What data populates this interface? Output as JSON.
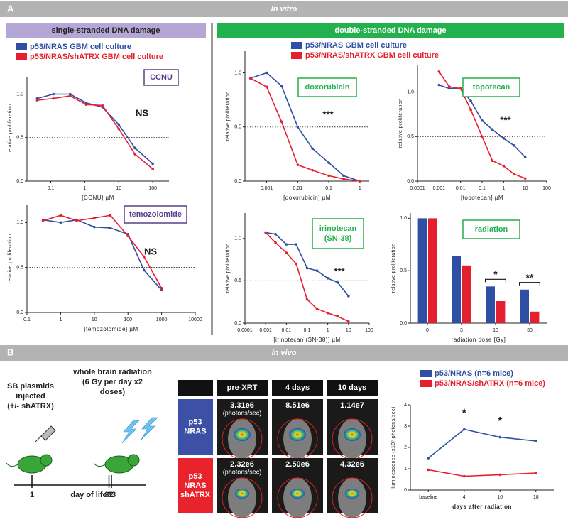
{
  "panel_a": {
    "letter": "A",
    "title": "In vitro",
    "left_header": "single-stranded DNA damage",
    "right_header": "double-stranded DNA damage"
  },
  "panel_b": {
    "letter": "B",
    "title": "In vivo"
  },
  "timeline": {
    "events": [
      {
        "label": [
          "SB plasmids",
          "injected",
          "(+/- shATRX)"
        ],
        "day": 1
      },
      {
        "label": [
          "whole brain radiation",
          "(6 Gy per day x2",
          "doses)"
        ],
        "day": 32
      }
    ],
    "extra_day": 33,
    "axis_label": "day of life"
  },
  "imaging": {
    "columns": [
      "pre-XRT",
      "4 days",
      "10 days"
    ],
    "rows": [
      {
        "label": [
          "p53",
          "NRAS"
        ],
        "color": "#3c50a5",
        "cells": [
          [
            "3.31e6",
            "(photons/sec)"
          ],
          [
            "8.51e6"
          ],
          [
            "1.14e7"
          ]
        ]
      },
      {
        "label": [
          "p53",
          "NRAS",
          "shATRX"
        ],
        "color": "#e8232b",
        "cells": [
          [
            "2.32e6",
            "(photons/sec)"
          ],
          [
            "2.50e6"
          ],
          [
            "4.32e6"
          ]
        ]
      }
    ]
  },
  "chart_data": [
    {
      "type": "line",
      "label": [
        "CCNU"
      ],
      "label_color": "#5b3f8c",
      "annotation": "NS",
      "xscale": "log",
      "xlabel": "[CCNU] µM",
      "ylabel": "relative proliferation",
      "refline": 0.5,
      "x": [
        0.04,
        0.12,
        0.37,
        1.1,
        3.3,
        10,
        30,
        100
      ],
      "xlim": [
        0.02,
        300
      ],
      "xticks": [
        0.1,
        1,
        10,
        100
      ],
      "ylim": [
        0,
        1.2
      ],
      "yticks": [
        {
          "value": 0,
          "label": "0.0"
        },
        {
          "value": 0.5,
          "label": "0.5"
        },
        {
          "value": 1,
          "label": "1.0"
        }
      ],
      "series": [
        {
          "name": "p53/NRAS GBM cell culture",
          "color": "#2e4fa3",
          "values": [
            0.95,
            1.0,
            1.0,
            0.9,
            0.85,
            0.65,
            0.38,
            0.2
          ]
        },
        {
          "name": "p53/NRAS/shATRX GBM cell culture",
          "color": "#e5202e",
          "values": [
            0.93,
            0.95,
            0.98,
            0.88,
            0.87,
            0.6,
            0.31,
            0.14
          ]
        }
      ]
    },
    {
      "type": "line",
      "label": [
        "temozolomide"
      ],
      "label_color": "#5b3f8c",
      "annotation": "NS",
      "xscale": "log",
      "xlabel": "[temozolomide] µM",
      "ylabel": "relative proliferation",
      "refline": 0.5,
      "x": [
        0.3,
        1,
        3,
        10,
        30,
        100,
        300,
        1000
      ],
      "xlim": [
        0.1,
        10000
      ],
      "xticks": [
        0.1,
        1,
        10,
        100,
        1000,
        10000
      ],
      "ylim": [
        0,
        1.2
      ],
      "yticks": [
        {
          "value": 0,
          "label": "0.0"
        },
        {
          "value": 0.5,
          "label": "0.5"
        },
        {
          "value": 1,
          "label": "1.0"
        }
      ],
      "series": [
        {
          "color": "#2e4fa3",
          "values": [
            1.03,
            1.0,
            1.03,
            0.95,
            0.94,
            0.87,
            0.47,
            0.25
          ]
        },
        {
          "color": "#e5202e",
          "values": [
            1.02,
            1.08,
            1.02,
            1.05,
            1.08,
            0.85,
            0.62,
            0.27
          ]
        }
      ]
    },
    {
      "type": "line",
      "label": [
        "doxorubicin"
      ],
      "label_color": "#22b14c",
      "annotation": "***",
      "xscale": "log",
      "xlabel": "[doxorubicin] µM",
      "ylabel": "relative proliferation",
      "refline": 0.5,
      "x": [
        0.0003,
        0.001,
        0.003,
        0.01,
        0.03,
        0.1,
        0.3,
        1
      ],
      "xlim": [
        0.0002,
        2
      ],
      "xticks": [
        0.001,
        0.01,
        0.1,
        1
      ],
      "ylim": [
        0,
        1.2
      ],
      "yticks": [
        {
          "value": 0,
          "label": "0.0"
        },
        {
          "value": 0.5,
          "label": "0.5"
        },
        {
          "value": 1,
          "label": "1.0"
        }
      ],
      "series": [
        {
          "name": "p53/NRAS GBM cell culture",
          "color": "#2e4fa3",
          "values": [
            0.95,
            1.0,
            0.88,
            0.5,
            0.3,
            0.17,
            0.05,
            0.0
          ]
        },
        {
          "name": "p53/NRAS/shATRX GBM cell culture",
          "color": "#e5202e",
          "values": [
            0.95,
            0.87,
            0.55,
            0.15,
            0.1,
            0.05,
            0.02,
            0.0
          ]
        }
      ]
    },
    {
      "type": "line",
      "label": [
        "topotecan"
      ],
      "label_color": "#22b14c",
      "annotation": "***",
      "xscale": "log",
      "xlabel": "[topotecan] µM",
      "ylabel": "relative proliferation",
      "refline": 0.5,
      "x": [
        0.001,
        0.003,
        0.01,
        0.03,
        0.1,
        0.3,
        1,
        3,
        10
      ],
      "xlim": [
        0.0001,
        100
      ],
      "xticks": [
        0.0001,
        0.001,
        0.01,
        0.1,
        1,
        10,
        100
      ],
      "ylim": [
        0,
        1.3
      ],
      "yticks": [
        {
          "value": 0,
          "label": "0.0"
        },
        {
          "value": 0.5,
          "label": "0.5"
        },
        {
          "value": 1,
          "label": "1.0"
        }
      ],
      "series": [
        {
          "color": "#2e4fa3",
          "values": [
            1.08,
            1.04,
            1.04,
            0.9,
            0.68,
            0.58,
            0.48,
            0.4,
            0.27
          ]
        },
        {
          "color": "#e5202e",
          "values": [
            1.23,
            1.06,
            1.04,
            0.8,
            0.5,
            0.23,
            0.17,
            0.08,
            0.03
          ]
        }
      ]
    },
    {
      "type": "line",
      "label": [
        "irinotecan",
        "(SN-38)"
      ],
      "label_color": "#22b14c",
      "annotation": "***",
      "xscale": "log",
      "xlabel": "[irinotecan (SN-38)] µM",
      "ylabel": "relative proliferation",
      "refline": 0.5,
      "x": [
        0.001,
        0.003,
        0.01,
        0.03,
        0.1,
        0.3,
        1,
        3,
        10
      ],
      "xlim": [
        0.0001,
        100
      ],
      "xticks": [
        0.0001,
        0.001,
        0.01,
        0.1,
        1,
        10,
        100
      ],
      "ylim": [
        0,
        1.3
      ],
      "yticks": [
        {
          "value": 0,
          "label": "0.0"
        },
        {
          "value": 0.5,
          "label": "0.5"
        },
        {
          "value": 1,
          "label": "1.0"
        }
      ],
      "series": [
        {
          "color": "#2e4fa3",
          "values": [
            1.07,
            1.05,
            0.93,
            0.93,
            0.65,
            0.62,
            0.53,
            0.48,
            0.32
          ]
        },
        {
          "color": "#e5202e",
          "values": [
            1.07,
            0.95,
            0.83,
            0.7,
            0.28,
            0.17,
            0.12,
            0.08,
            0.02
          ]
        }
      ]
    },
    {
      "type": "bar",
      "label": [
        "radiation"
      ],
      "label_color": "#22b14c",
      "xlabel": "radiation dose [Gy]",
      "ylabel": "relative proliferation",
      "categories": [
        "0",
        "3",
        "10",
        "30"
      ],
      "ylim": [
        0,
        1.05
      ],
      "yticks": [
        {
          "value": 0,
          "label": "0.0"
        },
        {
          "value": 0.5,
          "label": "0.5"
        },
        {
          "value": 1,
          "label": "1.0"
        }
      ],
      "annotations": [
        {
          "x": "10",
          "text": "*"
        },
        {
          "x": "30",
          "text": "**"
        }
      ],
      "series": [
        {
          "color": "#2e4fa3",
          "values": [
            1.0,
            0.64,
            0.35,
            0.32
          ]
        },
        {
          "color": "#e5202e",
          "values": [
            1.0,
            0.55,
            0.21,
            0.11
          ]
        }
      ]
    },
    {
      "type": "line",
      "xlabel": "days after radiation",
      "ylabel": "luminescence (x10⁷ photons/sec)",
      "categories": [
        "baseline",
        "4",
        "10",
        "18"
      ],
      "ylim": [
        0,
        4
      ],
      "yticks": [
        0,
        1,
        2,
        3,
        4
      ],
      "annotations": [
        {
          "x": "4",
          "text": "*"
        },
        {
          "x": "10",
          "text": "*"
        }
      ],
      "series": [
        {
          "name": "p53/NRAS (n=6 mice)",
          "color": "#2e4fa3",
          "values": [
            1.5,
            2.85,
            2.48,
            2.3
          ]
        },
        {
          "name": "p53/NRAS/shATRX (n=6 mice)",
          "color": "#e5202e",
          "values": [
            0.95,
            0.65,
            0.72,
            0.8
          ]
        }
      ]
    }
  ]
}
